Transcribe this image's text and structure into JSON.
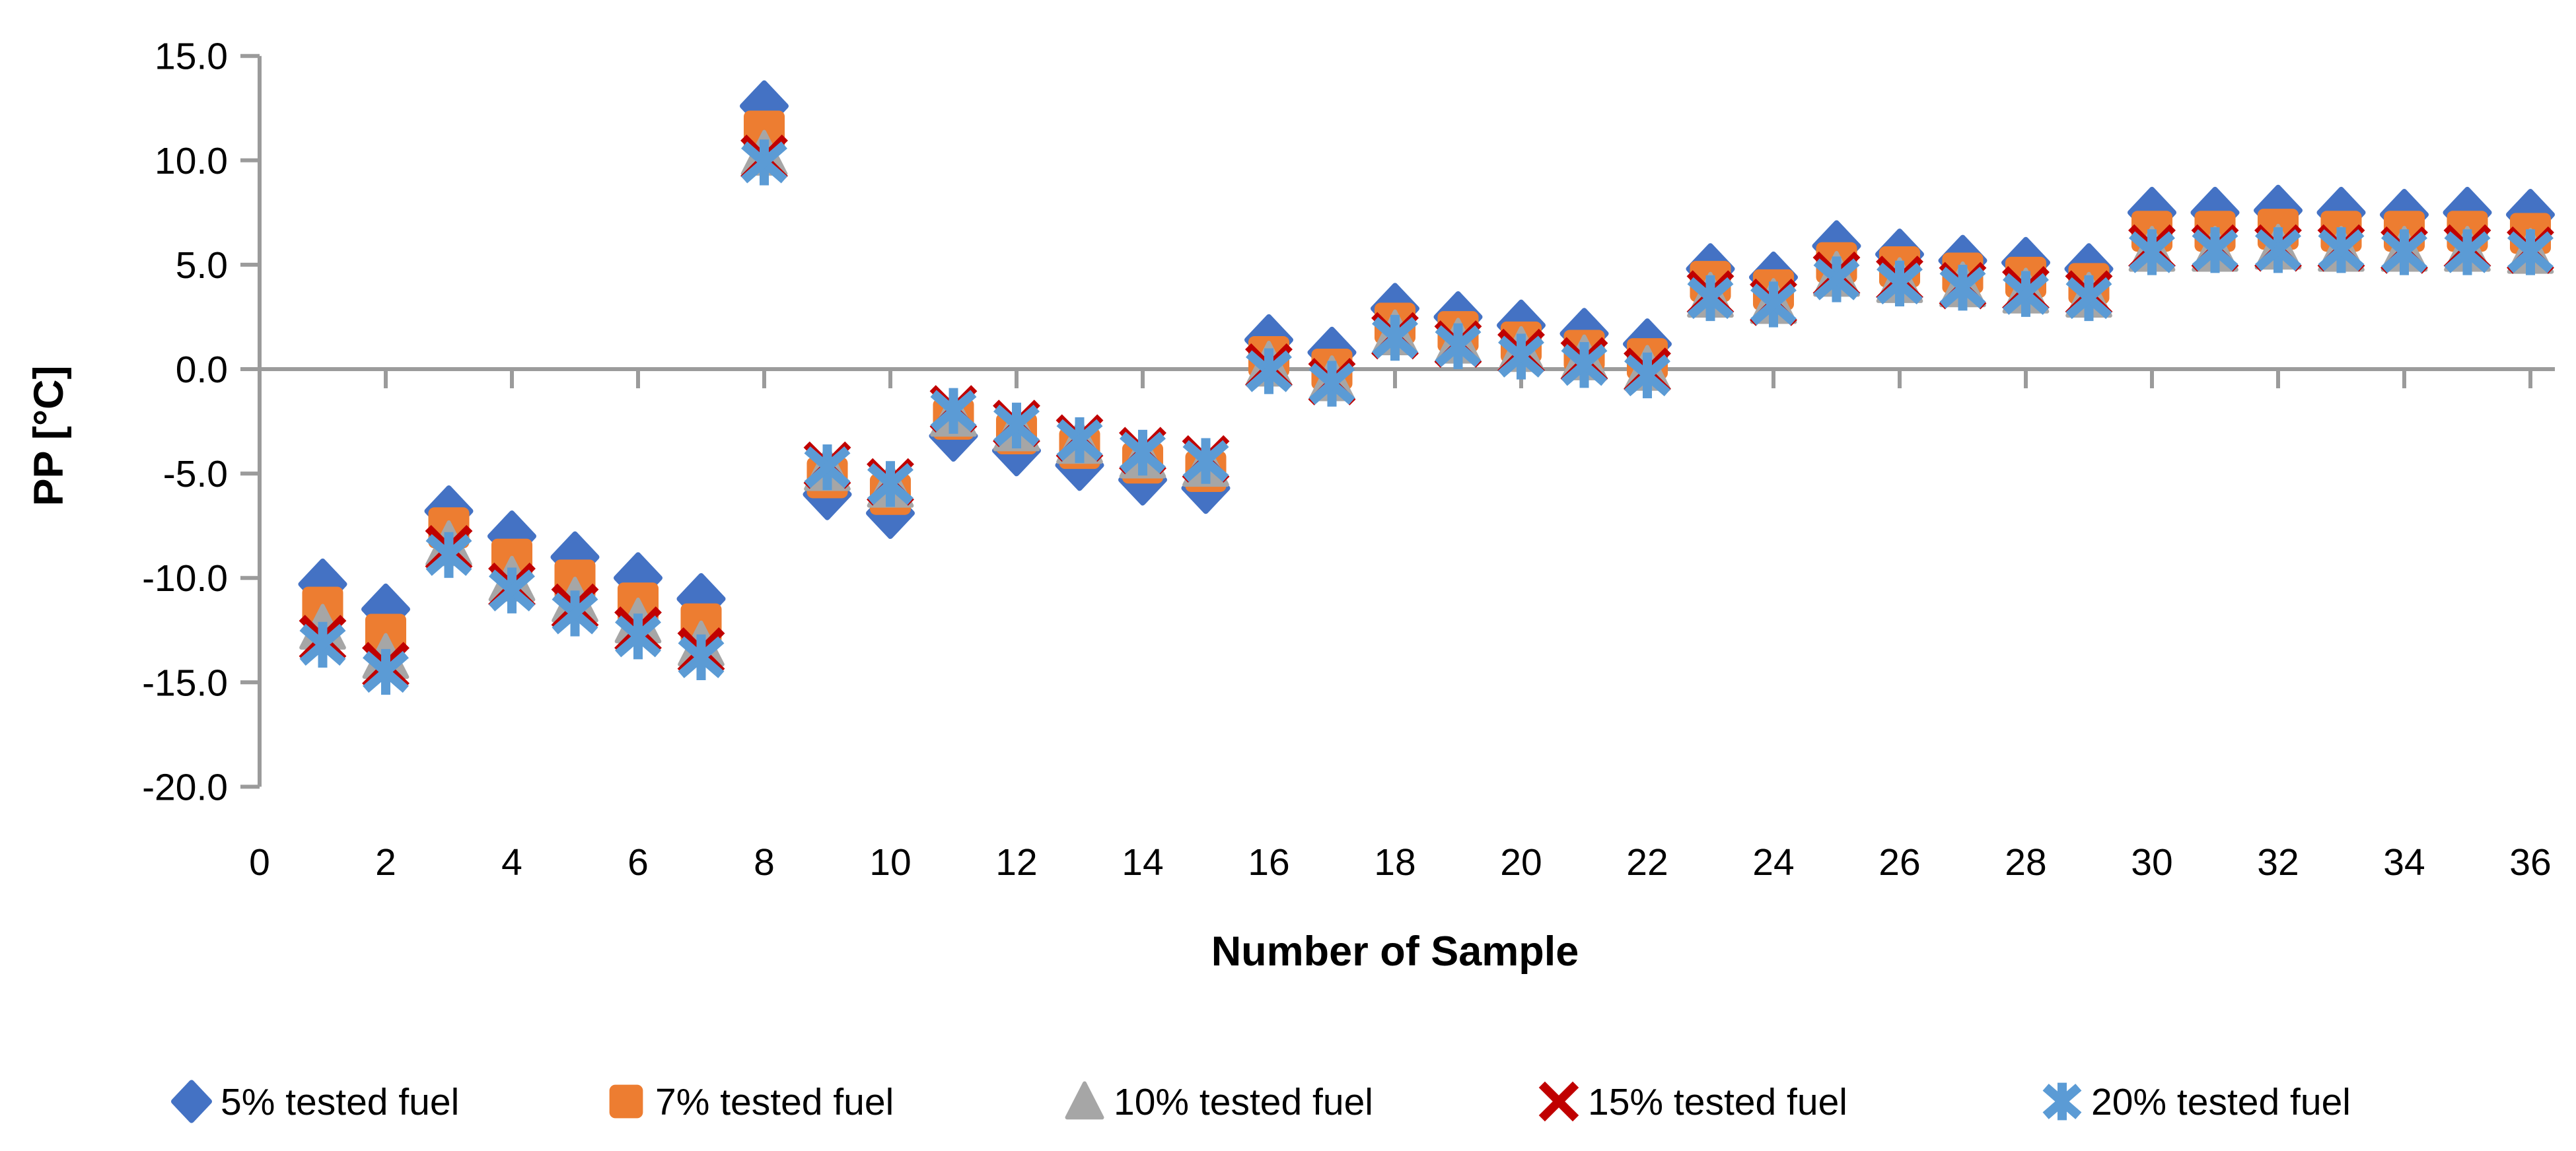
{
  "chart_data": {
    "type": "scatter",
    "title": "",
    "xlabel": "Number of Sample",
    "ylabel": "PP [°C]",
    "grid": false,
    "legend_position": "bottom",
    "axis_color": "#9B9B9B",
    "text_color": "#000000",
    "xlim": [
      0,
      36.8
    ],
    "ylim": [
      -20,
      15
    ],
    "x_tick_values": [
      0,
      2,
      4,
      6,
      8,
      10,
      12,
      14,
      16,
      18,
      20,
      22,
      24,
      26,
      28,
      30,
      32,
      34,
      36
    ],
    "x_tick_labels": [
      "0",
      "2",
      "4",
      "6",
      "8",
      "10",
      "12",
      "14",
      "16",
      "18",
      "20",
      "22",
      "24",
      "26",
      "28",
      "30",
      "32",
      "34",
      "36"
    ],
    "y_tick_values": [
      15,
      10,
      5,
      0,
      -5,
      -10,
      -15,
      -20
    ],
    "y_tick_labels": [
      "15.0",
      "10.0",
      "5.0",
      "0.0",
      "-5.0",
      "-10.0",
      "-15.0",
      "-20.0"
    ],
    "x": [
      1,
      2,
      3,
      4,
      5,
      6,
      7,
      8,
      9,
      10,
      11,
      12,
      13,
      14,
      15,
      16,
      17,
      18,
      19,
      20,
      21,
      22,
      23,
      24,
      25,
      26,
      27,
      28,
      29,
      30,
      31,
      32,
      33,
      34,
      35,
      36
    ],
    "series": [
      {
        "name": "5% tested fuel",
        "marker": "diamond",
        "color": "#4472C4",
        "values": [
          -10.3,
          -11.5,
          -6.8,
          -8.0,
          -9.0,
          -10.0,
          -11.0,
          12.6,
          -6.0,
          -6.9,
          -3.2,
          -3.9,
          -4.6,
          -5.3,
          -5.7,
          1.4,
          0.8,
          2.9,
          2.5,
          2.1,
          1.7,
          1.2,
          4.8,
          4.4,
          5.9,
          5.5,
          5.2,
          5.1,
          4.8,
          7.5,
          7.5,
          7.6,
          7.5,
          7.4,
          7.5,
          7.4
        ]
      },
      {
        "name": "7% tested fuel",
        "marker": "square",
        "color": "#ED7D31",
        "values": [
          -11.4,
          -12.7,
          -7.6,
          -9.1,
          -10.1,
          -11.2,
          -12.2,
          11.4,
          -5.2,
          -6.0,
          -2.4,
          -3.1,
          -3.8,
          -4.5,
          -4.9,
          0.6,
          0.0,
          2.2,
          1.8,
          1.3,
          0.9,
          0.5,
          4.2,
          3.8,
          5.1,
          4.9,
          4.6,
          4.4,
          4.1,
          6.6,
          6.6,
          6.7,
          6.6,
          6.6,
          6.6,
          6.5
        ]
      },
      {
        "name": "10% tested fuel",
        "marker": "triangle",
        "color": "#A6A6A6",
        "values": [
          -12.4,
          -13.8,
          -8.4,
          -10.1,
          -11.1,
          -12.1,
          -13.2,
          10.3,
          -4.8,
          -5.6,
          -2.2,
          -2.9,
          -3.5,
          -4.2,
          -4.6,
          0.2,
          -0.5,
          1.7,
          1.3,
          0.9,
          0.5,
          0.0,
          3.5,
          3.2,
          4.5,
          4.2,
          4.0,
          3.7,
          3.5,
          5.7,
          5.7,
          5.8,
          5.7,
          5.7,
          5.7,
          5.6
        ]
      },
      {
        "name": "15% tested fuel",
        "marker": "x",
        "color": "#C00000",
        "values": [
          -12.9,
          -14.2,
          -8.6,
          -10.4,
          -11.4,
          -12.5,
          -13.5,
          10.1,
          -4.6,
          -5.4,
          -1.9,
          -2.6,
          -3.3,
          -3.9,
          -4.3,
          0.1,
          -0.6,
          1.6,
          1.2,
          0.8,
          0.4,
          -0.1,
          3.6,
          3.2,
          4.5,
          4.3,
          4.0,
          3.8,
          3.6,
          5.8,
          5.8,
          5.8,
          5.8,
          5.7,
          5.8,
          5.7
        ]
      },
      {
        "name": "20% tested fuel",
        "marker": "asterisk",
        "color": "#5B9BD5",
        "values": [
          -13.2,
          -14.5,
          -8.9,
          -10.6,
          -11.7,
          -12.8,
          -13.8,
          9.9,
          -4.7,
          -5.5,
          -2.0,
          -2.7,
          -3.4,
          -4.0,
          -4.4,
          -0.1,
          -0.7,
          1.5,
          1.1,
          0.6,
          0.2,
          -0.3,
          3.4,
          3.1,
          4.3,
          4.1,
          3.9,
          3.6,
          3.4,
          5.6,
          5.7,
          5.7,
          5.7,
          5.6,
          5.6,
          5.6
        ]
      }
    ]
  }
}
